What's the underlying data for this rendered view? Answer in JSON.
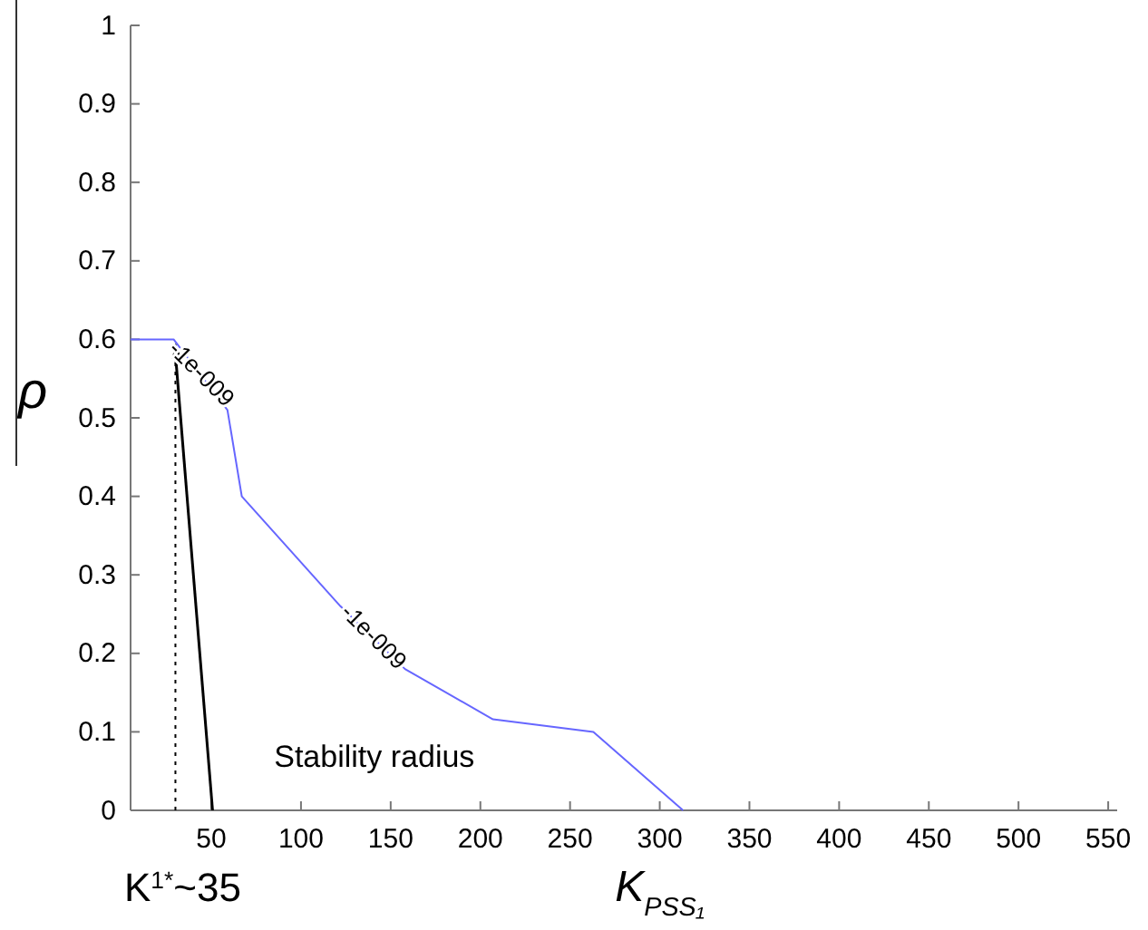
{
  "chart_data": {
    "type": "line",
    "xlabel": "K$_{PSS₁}$",
    "ylabel": "ρ",
    "xlim": [
      5,
      555
    ],
    "xticks": [
      50,
      100,
      150,
      200,
      250,
      300,
      350,
      400,
      450,
      500,
      550
    ],
    "ylim": [
      0,
      1
    ],
    "yticks": [
      0,
      {
        "value": 0.1,
        "label": "0.1"
      },
      {
        "value": 0.2,
        "label": "0.2"
      },
      {
        "value": 0.3,
        "label": "0.3"
      },
      {
        "value": 0.4,
        "label": "0.4"
      },
      {
        "value": 0.5,
        "label": "0.5"
      },
      {
        "value": 0.6,
        "label": "0.6"
      },
      {
        "value": 0.7,
        "label": "0.7"
      },
      {
        "value": 0.8,
        "label": "0.8"
      },
      {
        "value": 0.9,
        "label": "0.9"
      },
      1
    ],
    "series": [
      {
        "color": "#6666ff",
        "x": [
          5,
          29,
          59,
          67,
          122,
          158,
          207,
          263,
          313
        ],
        "values": [
          0.6,
          0.6,
          0.51,
          0.4,
          0.26,
          0.18,
          0.116,
          0.1,
          0
        ]
      }
    ],
    "ref_lines": [
      {
        "axis": "x",
        "value": 30,
        "label": "K$^{1*}$~35",
        "color": "#000000",
        "line_style": "dotted"
      }
    ],
    "annotations": [
      {
        "text": "-1e-009",
        "x": 44,
        "y": 0.555
      },
      {
        "text": "-1e-009",
        "x": 140,
        "y": 0.22
      },
      "Stability radius"
    ],
    "grid": false,
    "marker": "none",
    "line_style": "solid"
  }
}
